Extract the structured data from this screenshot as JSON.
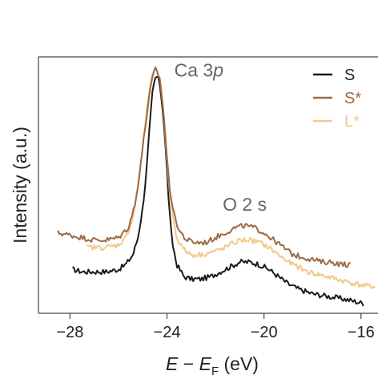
{
  "chart_data": {
    "type": "line",
    "title": "",
    "xlabel": {
      "var": "E",
      "minus": " − ",
      "var2": "E",
      "sub": "F",
      "unit": " (eV)"
    },
    "ylabel": "Intensity (a.u.)",
    "xlim": [
      -29.3,
      -15.3
    ],
    "ylim": [
      0,
      1.05
    ],
    "xticks": [
      -28,
      -24,
      -20,
      -16
    ],
    "xtick_labels": [
      "−28",
      "−24",
      "−20",
      "−16"
    ],
    "yticks_shown": false,
    "grid": false,
    "legend_position": "top-right",
    "annotations": [
      {
        "text_main": "Ca 3",
        "text_italic": "p",
        "x": -23.7,
        "y": 0.97
      },
      {
        "text_main": "O 2 s",
        "x": -21.7,
        "y": 0.42
      }
    ],
    "series": [
      {
        "name": "S",
        "color": "#1a1a1a",
        "points": [
          [
            -27.9,
            0.18
          ],
          [
            -27.5,
            0.17
          ],
          [
            -27.0,
            0.17
          ],
          [
            -26.5,
            0.17
          ],
          [
            -26.0,
            0.18
          ],
          [
            -25.7,
            0.2
          ],
          [
            -25.4,
            0.24
          ],
          [
            -25.2,
            0.31
          ],
          [
            -25.0,
            0.43
          ],
          [
            -24.85,
            0.58
          ],
          [
            -24.7,
            0.78
          ],
          [
            -24.6,
            0.9
          ],
          [
            -24.5,
            0.96
          ],
          [
            -24.4,
            0.97
          ],
          [
            -24.3,
            0.94
          ],
          [
            -24.2,
            0.86
          ],
          [
            -24.1,
            0.74
          ],
          [
            -24.0,
            0.58
          ],
          [
            -23.9,
            0.42
          ],
          [
            -23.8,
            0.3
          ],
          [
            -23.6,
            0.2
          ],
          [
            -23.3,
            0.15
          ],
          [
            -23.0,
            0.14
          ],
          [
            -22.6,
            0.14
          ],
          [
            -22.2,
            0.15
          ],
          [
            -21.8,
            0.17
          ],
          [
            -21.4,
            0.19
          ],
          [
            -21.0,
            0.21
          ],
          [
            -20.6,
            0.21
          ],
          [
            -20.2,
            0.2
          ],
          [
            -19.8,
            0.18
          ],
          [
            -19.4,
            0.15
          ],
          [
            -19.0,
            0.12
          ],
          [
            -18.6,
            0.1
          ],
          [
            -18.0,
            0.08
          ],
          [
            -17.4,
            0.07
          ],
          [
            -16.8,
            0.06
          ],
          [
            -16.3,
            0.05
          ],
          [
            -15.9,
            0.04
          ]
        ]
      },
      {
        "name": "S*",
        "color": "#9c6a44",
        "points": [
          [
            -28.5,
            0.33
          ],
          [
            -28.0,
            0.32
          ],
          [
            -27.5,
            0.31
          ],
          [
            -27.0,
            0.3
          ],
          [
            -26.5,
            0.3
          ],
          [
            -26.0,
            0.31
          ],
          [
            -25.6,
            0.35
          ],
          [
            -25.3,
            0.45
          ],
          [
            -25.1,
            0.6
          ],
          [
            -24.9,
            0.76
          ],
          [
            -24.75,
            0.88
          ],
          [
            -24.6,
            0.96
          ],
          [
            -24.5,
            1.0
          ],
          [
            -24.4,
            0.99
          ],
          [
            -24.3,
            0.96
          ],
          [
            -24.2,
            0.88
          ],
          [
            -24.1,
            0.77
          ],
          [
            -24.0,
            0.64
          ],
          [
            -23.9,
            0.52
          ],
          [
            -23.7,
            0.4
          ],
          [
            -23.5,
            0.34
          ],
          [
            -23.2,
            0.3
          ],
          [
            -22.8,
            0.29
          ],
          [
            -22.4,
            0.29
          ],
          [
            -22.0,
            0.31
          ],
          [
            -21.6,
            0.33
          ],
          [
            -21.2,
            0.35
          ],
          [
            -20.8,
            0.36
          ],
          [
            -20.4,
            0.35
          ],
          [
            -20.0,
            0.33
          ],
          [
            -19.6,
            0.3
          ],
          [
            -19.2,
            0.27
          ],
          [
            -18.8,
            0.24
          ],
          [
            -18.4,
            0.23
          ],
          [
            -18.0,
            0.22
          ],
          [
            -17.6,
            0.21
          ],
          [
            -17.2,
            0.21
          ],
          [
            -16.8,
            0.2
          ],
          [
            -16.4,
            0.2
          ]
        ]
      },
      {
        "name": "L*",
        "color": "#f1c98a",
        "points": [
          [
            -27.3,
            0.27
          ],
          [
            -27.0,
            0.27
          ],
          [
            -26.5,
            0.27
          ],
          [
            -26.0,
            0.28
          ],
          [
            -25.7,
            0.31
          ],
          [
            -25.4,
            0.39
          ],
          [
            -25.2,
            0.52
          ],
          [
            -25.0,
            0.68
          ],
          [
            -24.85,
            0.82
          ],
          [
            -24.7,
            0.93
          ],
          [
            -24.55,
            0.99
          ],
          [
            -24.45,
            1.0
          ],
          [
            -24.35,
            0.98
          ],
          [
            -24.25,
            0.93
          ],
          [
            -24.15,
            0.83
          ],
          [
            -24.05,
            0.7
          ],
          [
            -23.95,
            0.56
          ],
          [
            -23.8,
            0.42
          ],
          [
            -23.6,
            0.31
          ],
          [
            -23.3,
            0.26
          ],
          [
            -23.0,
            0.24
          ],
          [
            -22.6,
            0.24
          ],
          [
            -22.2,
            0.25
          ],
          [
            -21.8,
            0.26
          ],
          [
            -21.4,
            0.28
          ],
          [
            -21.0,
            0.3
          ],
          [
            -20.6,
            0.3
          ],
          [
            -20.2,
            0.29
          ],
          [
            -19.8,
            0.27
          ],
          [
            -19.4,
            0.24
          ],
          [
            -19.0,
            0.21
          ],
          [
            -18.6,
            0.19
          ],
          [
            -18.2,
            0.17
          ],
          [
            -17.8,
            0.16
          ],
          [
            -17.4,
            0.15
          ],
          [
            -17.0,
            0.14
          ],
          [
            -16.6,
            0.13
          ],
          [
            -16.2,
            0.12
          ],
          [
            -15.7,
            0.11
          ],
          [
            -15.4,
            0.11
          ]
        ]
      }
    ]
  }
}
